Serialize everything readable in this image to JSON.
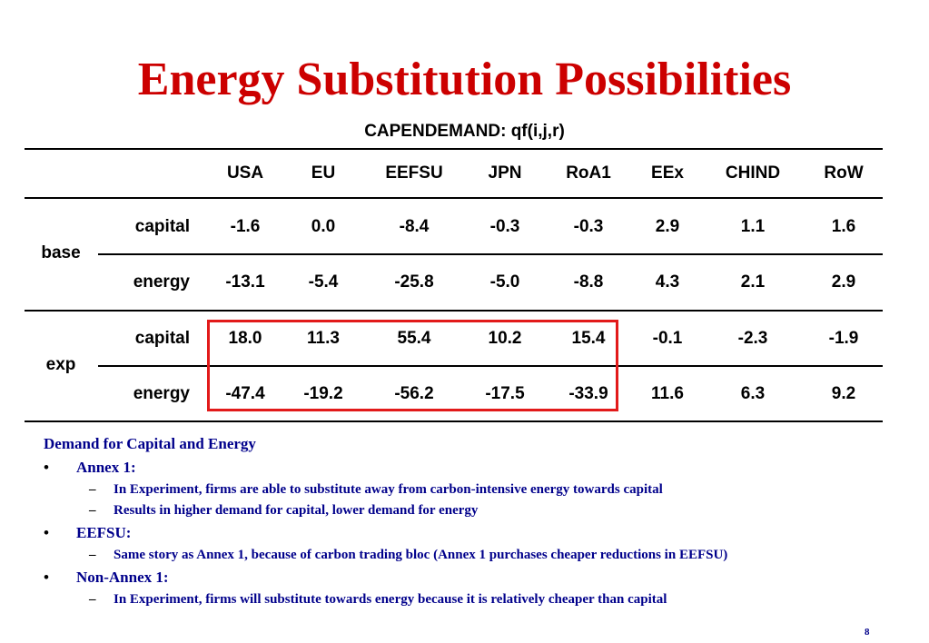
{
  "slide": {
    "title": "Energy Substitution Possibilities",
    "subtitle": "CAPENDEMAND: qf(i,j,r)",
    "page_number": "8"
  },
  "table": {
    "columns": [
      "USA",
      "EU",
      "EEFSU",
      "JPN",
      "RoA1",
      "EEx",
      "CHIND",
      "RoW"
    ],
    "groups": [
      {
        "label": "base",
        "rows": [
          {
            "label": "capital",
            "values": [
              "-1.6",
              "0.0",
              "-8.4",
              "-0.3",
              "-0.3",
              "2.9",
              "1.1",
              "1.6"
            ]
          },
          {
            "label": "energy",
            "values": [
              "-13.1",
              "-5.4",
              "-25.8",
              "-5.0",
              "-8.8",
              "4.3",
              "2.1",
              "2.9"
            ]
          }
        ]
      },
      {
        "label": "exp",
        "rows": [
          {
            "label": "capital",
            "values": [
              "18.0",
              "11.3",
              "55.4",
              "10.2",
              "15.4",
              "-0.1",
              "-2.3",
              "-1.9"
            ]
          },
          {
            "label": "energy",
            "values": [
              "-47.4",
              "-19.2",
              "-56.2",
              "-17.5",
              "-33.9",
              "11.6",
              "6.3",
              "9.2"
            ]
          }
        ]
      }
    ],
    "highlight_color": "#e21a1a"
  },
  "notes": {
    "heading": "Demand for Capital and Energy",
    "bullets": [
      {
        "label": "Annex 1:",
        "subs": [
          "In Experiment, firms are able to substitute away from carbon-intensive energy towards capital",
          "Results in higher demand for capital, lower demand for energy"
        ]
      },
      {
        "label": "EEFSU:",
        "subs": [
          "Same story as Annex 1, because of carbon trading bloc (Annex 1 purchases cheaper reductions in EEFSU)"
        ]
      },
      {
        "label": "Non-Annex 1:",
        "subs": [
          "In Experiment, firms will substitute towards energy because it is relatively cheaper than capital"
        ]
      }
    ],
    "bullet_mark": "•",
    "sub_mark": "–"
  },
  "colors": {
    "title": "#cc0000",
    "notes_text": "#00008b",
    "highlight_box": "#e21a1a"
  }
}
